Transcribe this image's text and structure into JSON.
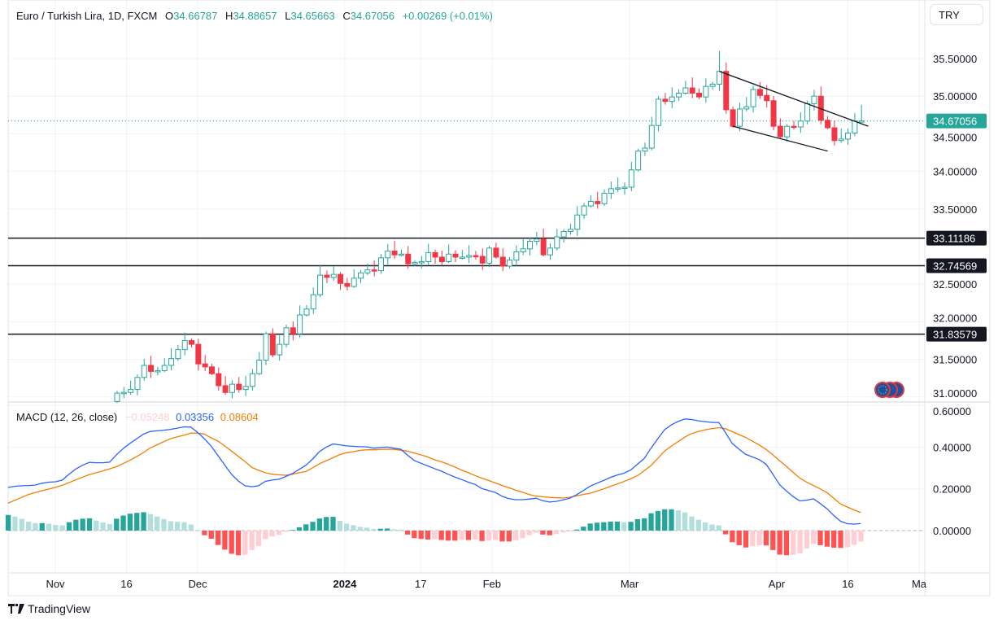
{
  "header": {
    "symbol": "Euro / Turkish Lira, 1D, FXCM",
    "o_label": "O",
    "o": "34.66787",
    "h_label": "H",
    "h": "34.88657",
    "l_label": "L",
    "l": "34.65663",
    "c_label": "C",
    "c": "34.67056",
    "change": "+0.00269 (+0.01%)"
  },
  "currency_button": "TRY",
  "branding": "TradingView",
  "colors": {
    "up": "#26a69a",
    "down": "#f23645",
    "macd": "#2962ff",
    "signal": "#f57c00",
    "hist_up_strong": "#26a69a",
    "hist_up_weak": "#b2dfdb",
    "hist_down_strong": "#ff5252",
    "hist_down_weak": "#ffcdd2"
  },
  "chart_data": [
    {
      "type": "candlestick",
      "candle_style": "hollow up / filled down",
      "first_open": 30.94,
      "closes": [
        31.05,
        31.06,
        31.1,
        31.26,
        31.42,
        31.34,
        31.35,
        31.42,
        31.51,
        31.63,
        31.75,
        31.7,
        31.44,
        31.4,
        31.31,
        31.15,
        31.06,
        31.17,
        31.1,
        31.14,
        31.31,
        31.49,
        31.84,
        31.56,
        31.7,
        31.92,
        31.84,
        32.09,
        32.17,
        32.36,
        32.62,
        32.59,
        32.63,
        32.51,
        32.47,
        32.58,
        32.65,
        32.69,
        32.68,
        32.85,
        32.94,
        32.89,
        32.9,
        32.77,
        32.79,
        32.8,
        32.92,
        32.86,
        32.8,
        32.9,
        32.86,
        32.86,
        32.88,
        32.87,
        32.78,
        32.98,
        32.86,
        32.74,
        32.82,
        32.93,
        32.97,
        33.07,
        33.1,
        32.89,
        32.98,
        33.13,
        33.2,
        33.23,
        33.42,
        33.54,
        33.6,
        33.57,
        33.71,
        33.77,
        33.78,
        33.79,
        34.02,
        34.27,
        34.31,
        34.61,
        34.96,
        34.93,
        34.99,
        35.04,
        35.11,
        35.04,
        34.99,
        35.13,
        35.16,
        35.33,
        34.82,
        34.6,
        34.83,
        34.86,
        35.09,
        35.01,
        34.94,
        34.6,
        34.46,
        34.6,
        34.59,
        34.67,
        34.9,
        35.0,
        34.68,
        34.58,
        34.41,
        34.43,
        34.51,
        34.67,
        34.67056
      ],
      "last_candle": {
        "open": 34.66787,
        "high": 34.88657,
        "low": 34.65663,
        "close": 34.67056
      },
      "peak_high": 35.6,
      "ylim": [
        30.95,
        35.75
      ],
      "y_ticks": [
        "35.50000",
        "35.00000",
        "34.50000",
        "34.00000",
        "33.50000",
        "32.50000",
        "32.00000",
        "31.50000",
        "31.00000"
      ],
      "y_tick_values": [
        35.5,
        35.0,
        34.5,
        34.0,
        33.5,
        32.5,
        32.0,
        31.5,
        31.0
      ],
      "current_price": {
        "value": 34.67056,
        "label": "34.67056"
      },
      "horizontal_levels": [
        {
          "value": 33.11186,
          "label": "33.11186"
        },
        {
          "value": 32.74569,
          "label": "32.74569"
        },
        {
          "value": 31.83579,
          "label": "31.83579"
        }
      ],
      "trend_lines": [
        {
          "from_candle": 89,
          "from_price": 35.33,
          "to_candle": 111,
          "to_price": 34.6
        },
        {
          "from_candle": 91,
          "from_price": 34.6,
          "to_candle": 105,
          "to_price": 34.27
        }
      ],
      "x_ticks": [
        {
          "label": "Nov",
          "date": "2023-11-01",
          "bold": false
        },
        {
          "label": "16",
          "date": "2023-11-16",
          "bold": false
        },
        {
          "label": "Dec",
          "date": "2023-12-01",
          "bold": false
        },
        {
          "label": "2024",
          "date": "2024-01-01",
          "bold": true
        },
        {
          "label": "17",
          "date": "2024-01-17",
          "bold": false
        },
        {
          "label": "Feb",
          "date": "2024-02-01",
          "bold": false
        },
        {
          "label": "Mar",
          "date": "2024-03-01",
          "bold": false
        },
        {
          "label": "Apr",
          "date": "2024-04-01",
          "bold": false
        },
        {
          "label": "16",
          "date": "2024-04-16",
          "bold": false
        },
        {
          "label": "Ma",
          "date": "2024-05-01",
          "bold": false
        }
      ],
      "grid": true
    },
    {
      "type": "macd",
      "title": "MACD (12, 26, close)",
      "legend_values": {
        "histogram": "−0.05248",
        "macd": "0.03356",
        "signal": "0.08604"
      },
      "ylim": [
        -0.13,
        0.62
      ],
      "y_ticks": [
        "0.60000",
        "0.40000",
        "0.20000",
        "0.00000"
      ],
      "y_tick_values": [
        0.6,
        0.4,
        0.2,
        0.0
      ],
      "macd": [
        0.207,
        0.212,
        0.215,
        0.216,
        0.218,
        0.227,
        0.232,
        0.234,
        0.242,
        0.27,
        0.295,
        0.313,
        0.327,
        0.325,
        0.325,
        0.328,
        0.363,
        0.393,
        0.418,
        0.44,
        0.462,
        0.475,
        0.478,
        0.481,
        0.485,
        0.491,
        0.497,
        0.496,
        0.47,
        0.44,
        0.405,
        0.36,
        0.315,
        0.27,
        0.238,
        0.215,
        0.21,
        0.215,
        0.236,
        0.242,
        0.246,
        0.259,
        0.273,
        0.293,
        0.313,
        0.343,
        0.378,
        0.4,
        0.415,
        0.411,
        0.406,
        0.404,
        0.402,
        0.401,
        0.395,
        0.398,
        0.4,
        0.395,
        0.39,
        0.362,
        0.336,
        0.323,
        0.31,
        0.297,
        0.285,
        0.27,
        0.257,
        0.245,
        0.232,
        0.221,
        0.201,
        0.192,
        0.183,
        0.164,
        0.153,
        0.148,
        0.148,
        0.151,
        0.155,
        0.143,
        0.137,
        0.14,
        0.147,
        0.155,
        0.172,
        0.192,
        0.213,
        0.227,
        0.24,
        0.255,
        0.266,
        0.275,
        0.29,
        0.318,
        0.346,
        0.395,
        0.44,
        0.483,
        0.507,
        0.523,
        0.535,
        0.532,
        0.526,
        0.522,
        0.518,
        0.518,
        0.47,
        0.418,
        0.39,
        0.365,
        0.353,
        0.34,
        0.318,
        0.27,
        0.22,
        0.19,
        0.163,
        0.142,
        0.146,
        0.152,
        0.13,
        0.105,
        0.073,
        0.045,
        0.033,
        0.031,
        0.03356
      ],
      "signal": [
        0.132,
        0.145,
        0.159,
        0.173,
        0.182,
        0.191,
        0.199,
        0.207,
        0.217,
        0.23,
        0.243,
        0.256,
        0.268,
        0.277,
        0.286,
        0.296,
        0.306,
        0.321,
        0.337,
        0.355,
        0.374,
        0.396,
        0.411,
        0.426,
        0.44,
        0.449,
        0.457,
        0.467,
        0.467,
        0.462,
        0.444,
        0.429,
        0.406,
        0.381,
        0.356,
        0.331,
        0.303,
        0.289,
        0.277,
        0.27,
        0.267,
        0.265,
        0.27,
        0.277,
        0.283,
        0.301,
        0.32,
        0.335,
        0.349,
        0.364,
        0.373,
        0.378,
        0.384,
        0.387,
        0.387,
        0.389,
        0.39,
        0.389,
        0.385,
        0.381,
        0.372,
        0.363,
        0.353,
        0.339,
        0.33,
        0.318,
        0.305,
        0.29,
        0.277,
        0.264,
        0.251,
        0.24,
        0.228,
        0.216,
        0.205,
        0.194,
        0.184,
        0.173,
        0.165,
        0.162,
        0.159,
        0.157,
        0.156,
        0.16,
        0.167,
        0.173,
        0.179,
        0.189,
        0.2,
        0.212,
        0.223,
        0.235,
        0.248,
        0.263,
        0.287,
        0.312,
        0.346,
        0.381,
        0.405,
        0.426,
        0.448,
        0.465,
        0.474,
        0.483,
        0.489,
        0.493,
        0.488,
        0.474,
        0.46,
        0.446,
        0.428,
        0.41,
        0.389,
        0.363,
        0.335,
        0.308,
        0.279,
        0.251,
        0.232,
        0.216,
        0.2,
        0.182,
        0.155,
        0.128,
        0.113,
        0.099,
        0.08604
      ]
    }
  ]
}
